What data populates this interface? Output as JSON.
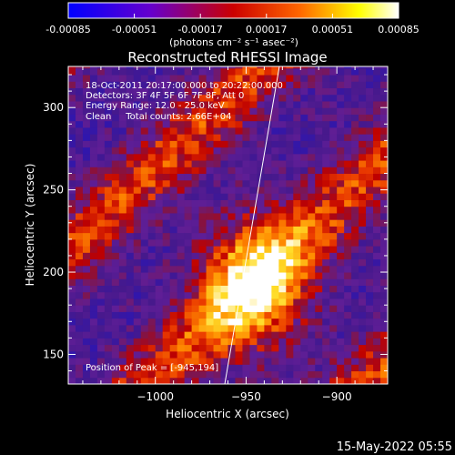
{
  "chart_data": {
    "type": "heatmap",
    "title": "Reconstructed RHESSI Image",
    "xlabel": "Heliocentric X (arcsec)",
    "ylabel": "Heliocentric Y (arcsec)",
    "xlim": [
      -1048,
      -872
    ],
    "ylim": [
      132,
      325
    ],
    "xticks": [
      -1000,
      -950,
      -900
    ],
    "yticks": [
      150,
      200,
      250,
      300
    ],
    "colorbar": {
      "label": "(photons cm⁻² s⁻¹ asec⁻²)",
      "ticks": [
        "-0.00085",
        "-0.00051",
        "-0.00017",
        "0.00017",
        "0.00051",
        "0.00085"
      ],
      "range": [
        -0.00085,
        0.00085
      ],
      "colors": [
        "#0000ff",
        "#6600cc",
        "#cc0000",
        "#ff6600",
        "#ffff00",
        "#ffffff"
      ]
    },
    "annotations": [
      "18-Oct-2011 20:17:00.000 to 20:22:00.000",
      "Detectors: 3F 4F 5F 6F 7F 8F, Att 0",
      "Energy Range: 12.0 - 25.0 keV",
      "Clean     Total counts: 2.66E+04"
    ],
    "peak_label": "Position of Peak = [-945,194]",
    "peak": [
      -945,
      194
    ],
    "footer_date": "15-May-2022 05:55"
  }
}
